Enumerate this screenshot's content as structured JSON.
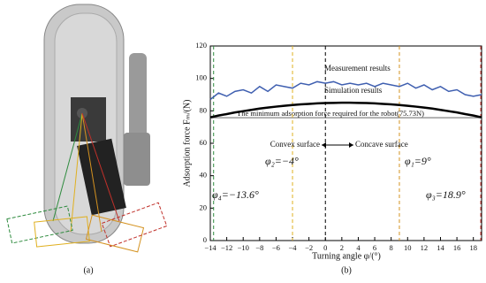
{
  "panel_labels": [
    "(a)",
    "(b)"
  ],
  "chart_data": {
    "type": "line",
    "y_label": "Adsorption force Fₘ/(N)",
    "x_label": "Turning angle φ/(°)",
    "xlim": [
      -14,
      19
    ],
    "ylim": [
      0,
      120
    ],
    "xticks": [
      {
        "value": -14,
        "label": "−14"
      },
      {
        "value": -12,
        "label": "−12"
      },
      {
        "value": -10,
        "label": "−10"
      },
      {
        "value": -8,
        "label": "−8"
      },
      {
        "value": -6,
        "label": "−6"
      },
      {
        "value": -4,
        "label": "−4"
      },
      {
        "value": -2,
        "label": "−2"
      },
      0,
      2,
      4,
      6,
      8,
      10,
      12,
      14,
      16,
      18
    ],
    "yticks": [
      0,
      20,
      40,
      60,
      80,
      100,
      120
    ],
    "x": [
      -14,
      -13,
      -12,
      -11,
      -10,
      -9,
      -8,
      -7,
      -6,
      -5,
      -4,
      -3,
      -2,
      -1,
      0,
      1,
      2,
      3,
      4,
      5,
      6,
      7,
      8,
      9,
      10,
      11,
      12,
      13,
      14,
      15,
      16,
      17,
      18,
      19
    ],
    "series": [
      {
        "name": "Measurement results",
        "color": "#3f5fb0",
        "values": [
          87,
          91,
          89,
          92,
          93,
          91,
          95,
          92,
          96,
          95,
          94,
          97,
          96,
          98,
          97,
          98,
          96,
          97,
          96,
          97,
          95,
          97,
          96,
          95,
          97,
          94,
          96,
          93,
          95,
          92,
          93,
          90,
          89,
          90
        ]
      },
      {
        "name": "Simulation results",
        "color": "#000000",
        "values": [
          76,
          77.1,
          78,
          79,
          79.8,
          80.6,
          81.4,
          82,
          82.6,
          83.1,
          83.6,
          84,
          84.3,
          84.6,
          84.8,
          84.9,
          85,
          85,
          84.9,
          84.8,
          84.6,
          84.3,
          84,
          83.6,
          83.1,
          82.6,
          82,
          81.4,
          80.6,
          79.8,
          79,
          78,
          77.1,
          76
        ]
      }
    ],
    "threshold": {
      "value": 75.73,
      "label": "The minimum adsorption force required for the robot(75.73N)",
      "color": "#999999"
    },
    "surface_labels": [
      "Convex surface",
      "Concave surface"
    ],
    "vlines": [
      {
        "value": -13.6,
        "label": "φ₄=−13.6°",
        "color": "#2e8b3e"
      },
      {
        "value": -4,
        "label": "φ₂=−4°",
        "color": "#e0b020"
      },
      {
        "value": 0,
        "color": "#000000"
      },
      {
        "value": 9,
        "label": "φ₁=9°",
        "color": "#d49220"
      },
      {
        "value": 18.9,
        "label": "φ₃=18.9°",
        "color": "#c0302a"
      }
    ]
  }
}
